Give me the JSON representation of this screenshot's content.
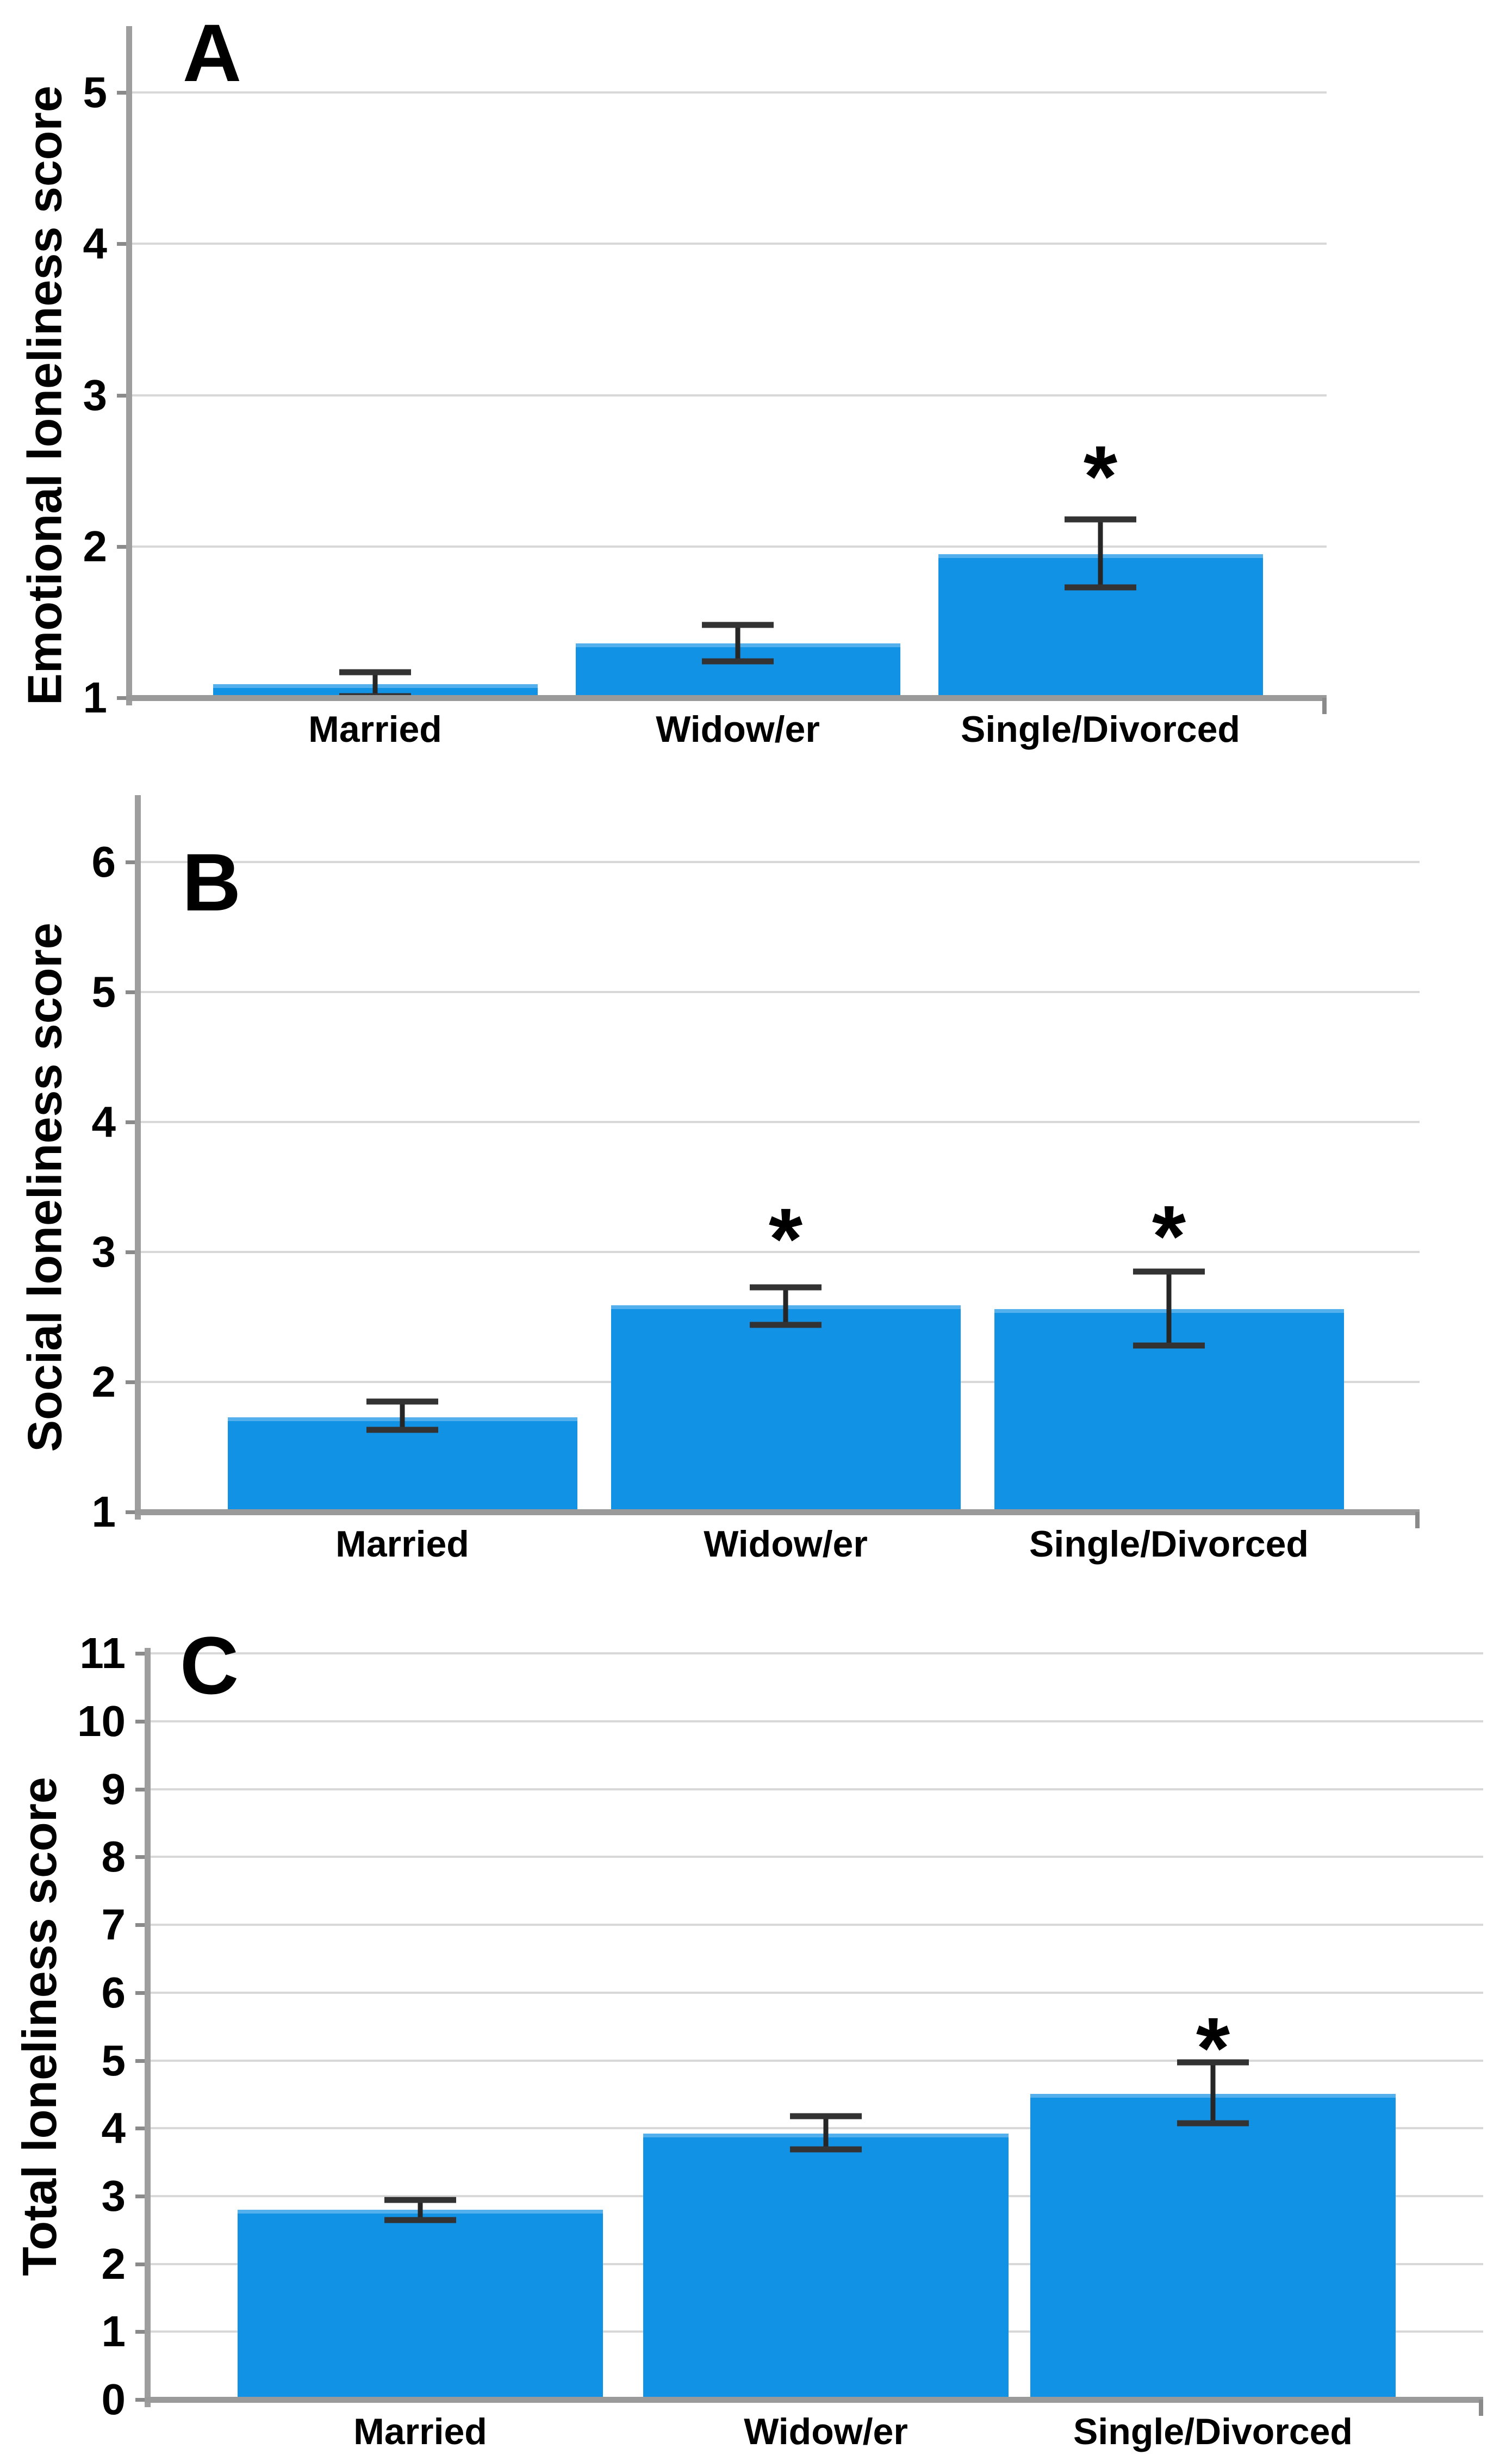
{
  "figure": {
    "background": "#ffffff",
    "bar_color": "#1192E4",
    "gridline_color": "#d8d8d8",
    "axis_color": "#9e9e9e",
    "error_bar_color": "#262626"
  },
  "symbols": {
    "significance": "*"
  },
  "chart_data": [
    {
      "type": "bar",
      "panel_label": "A",
      "title": "",
      "xlabel": "",
      "ylabel": "Emotional loneliness score",
      "categories": [
        "Married",
        "Widow/er",
        "Single/Divorced"
      ],
      "values": [
        1.09,
        1.36,
        1.95
      ],
      "error_low": [
        1.01,
        1.24,
        1.73
      ],
      "error_high": [
        1.17,
        1.48,
        2.18
      ],
      "star_y": [
        null,
        null,
        2.55
      ],
      "ylim": [
        1,
        5
      ],
      "yticks": [
        1,
        2,
        3,
        4,
        5
      ],
      "grid": true,
      "legend": false,
      "bar_color": "#1192E4"
    },
    {
      "type": "bar",
      "panel_label": "B",
      "title": "",
      "xlabel": "",
      "ylabel": "Social loneliness score",
      "categories": [
        "Married",
        "Widow/er",
        "Single/Divorced"
      ],
      "values": [
        1.73,
        2.59,
        2.56
      ],
      "error_low": [
        1.63,
        2.44,
        2.28
      ],
      "error_high": [
        1.85,
        2.73,
        2.85
      ],
      "star_y": [
        null,
        3.2,
        3.22
      ],
      "ylim": [
        1,
        6
      ],
      "yticks": [
        1,
        2,
        3,
        4,
        5,
        6
      ],
      "grid": true,
      "legend": false,
      "bar_color": "#1192E4"
    },
    {
      "type": "bar",
      "panel_label": "C",
      "title": "",
      "xlabel": "",
      "ylabel": "Total loneliness score",
      "categories": [
        "Married",
        "Widow/er",
        "Single/Divorced"
      ],
      "values": [
        2.8,
        3.92,
        4.51
      ],
      "error_low": [
        2.65,
        3.69,
        4.07
      ],
      "error_high": [
        2.94,
        4.18,
        4.97
      ],
      "star_y": [
        null,
        null,
        5.37
      ],
      "ylim": [
        0,
        11
      ],
      "yticks": [
        0,
        1,
        2,
        3,
        4,
        5,
        6,
        7,
        8,
        9,
        10,
        11
      ],
      "grid": true,
      "legend": false,
      "bar_color": "#1192E4"
    }
  ]
}
